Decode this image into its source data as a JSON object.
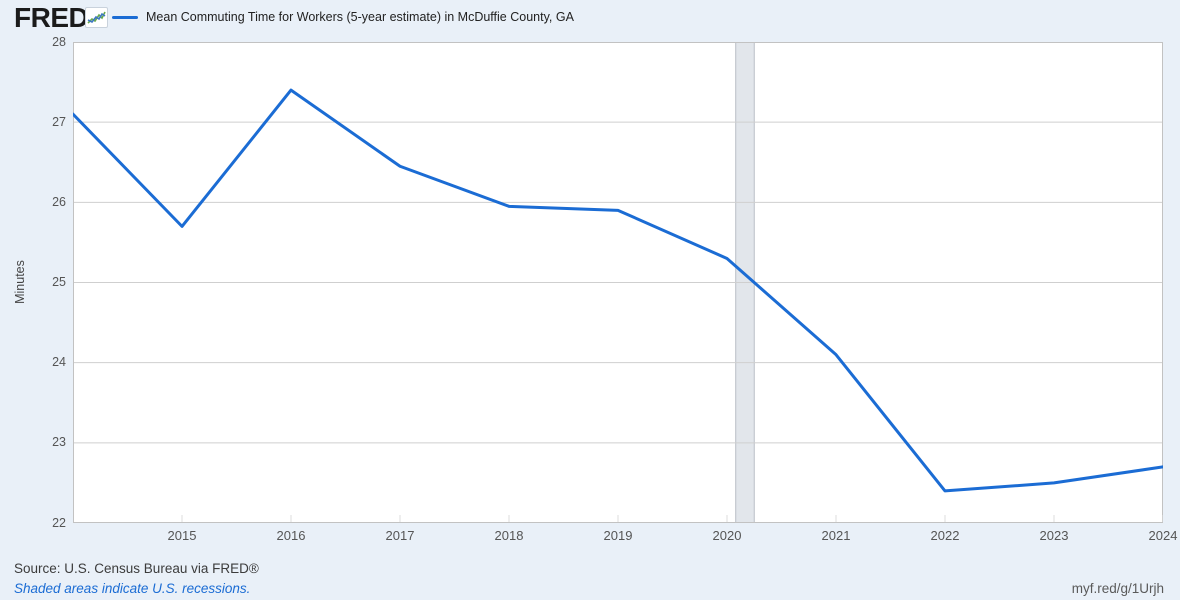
{
  "header": {
    "logo": "FRED",
    "logo_registered": "®",
    "legend_label": "Mean Commuting Time for Workers (5-year estimate) in McDuffie County, GA"
  },
  "chart_data": {
    "type": "line",
    "title": "Mean Commuting Time for Workers (5-year estimate) in McDuffie County, GA",
    "ylabel": "Minutes",
    "x": [
      2014,
      2015,
      2016,
      2017,
      2018,
      2019,
      2020,
      2021,
      2022,
      2023,
      2024
    ],
    "values": [
      27.1,
      25.7,
      27.4,
      26.45,
      25.95,
      25.9,
      25.3,
      24.1,
      22.4,
      22.5,
      22.7
    ],
    "xlim": [
      2014,
      2024
    ],
    "ylim": [
      22,
      28
    ],
    "yticks": [
      22,
      23,
      24,
      25,
      26,
      27,
      28
    ],
    "xticks": [
      2015,
      2016,
      2017,
      2018,
      2019,
      2020,
      2021,
      2022,
      2023,
      2024
    ],
    "grid": "horizontal",
    "legend_position": "top",
    "line_color": "#1b6cd4",
    "recession_bands": [
      {
        "start": 2020.08,
        "end": 2020.25
      }
    ]
  },
  "footer": {
    "source": "Source: U.S. Census Bureau via FRED®",
    "recession_note": "Shaded areas indicate U.S. recessions.",
    "short_url": "myf.red/g/1Urjh"
  },
  "colors": {
    "accent_blue": "#1b6cd4",
    "page_bg": "#e9f0f8",
    "plot_bg": "#ffffff",
    "plot_border": "#c2c2c2",
    "gridline": "#cfcfcf",
    "tick": "#dcdcdc",
    "band_fill": "#e2e6eb",
    "band_edge": "#b9bec6",
    "logo_icon_blue": "#3d77c2",
    "logo_icon_green": "#67a94d"
  }
}
